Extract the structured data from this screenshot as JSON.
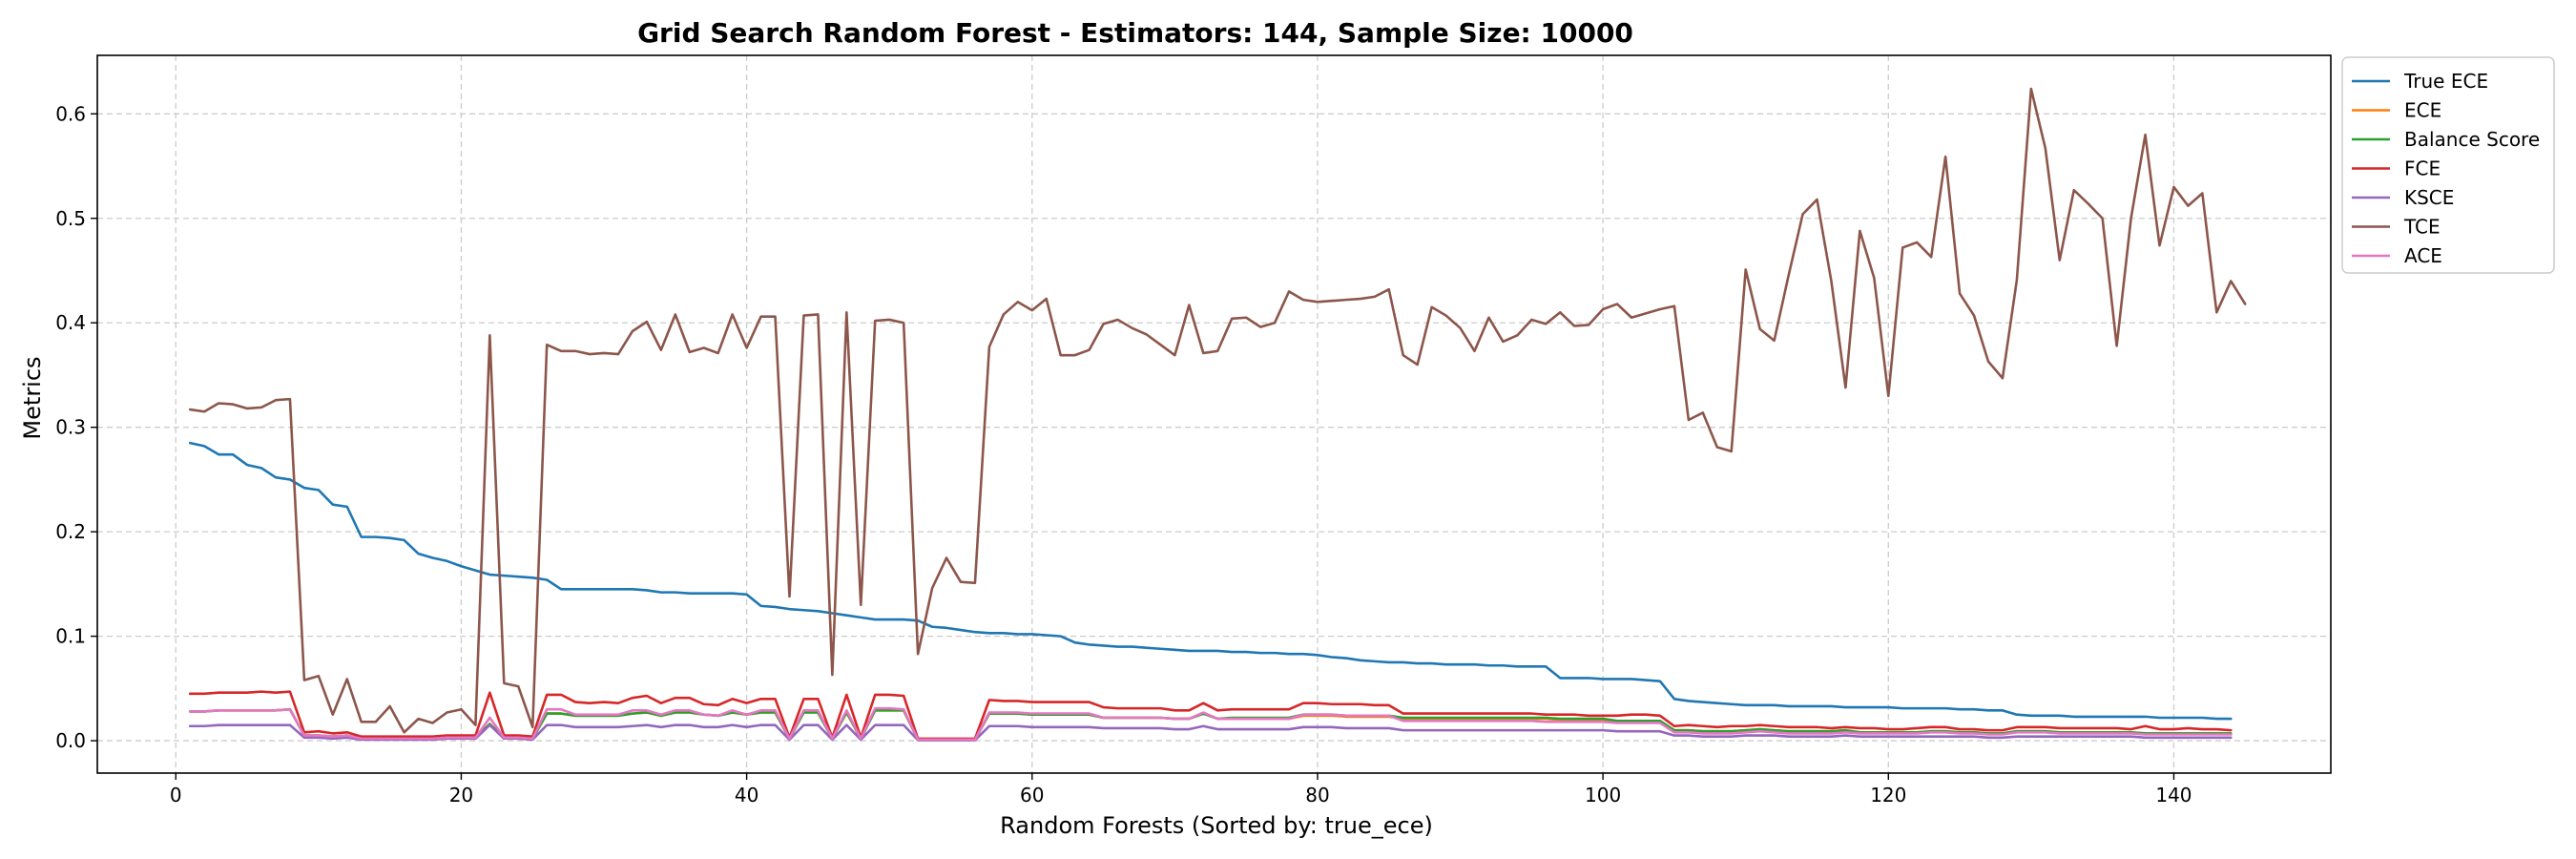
{
  "chart_data": {
    "type": "line",
    "title": "Grid Search Random Forest - Estimators: 144, Sample Size: 10000",
    "xlabel": "Random Forests (Sorted by: true_ece)",
    "ylabel": "Metrics",
    "xlim": [
      -5.5,
      151
    ],
    "ylim": [
      -0.031,
      0.656
    ],
    "x_ticks": [
      0,
      20,
      40,
      60,
      80,
      100,
      120,
      140
    ],
    "y_ticks": [
      0.0,
      0.1,
      0.2,
      0.3,
      0.4,
      0.5,
      0.6
    ],
    "x_tick_labels": [
      "0",
      "20",
      "40",
      "60",
      "80",
      "100",
      "120",
      "140"
    ],
    "y_tick_labels": [
      "0.0",
      "0.1",
      "0.2",
      "0.3",
      "0.4",
      "0.5",
      "0.6"
    ],
    "grid": true,
    "legend_position": "outside-top-right",
    "x_start": 1,
    "series": [
      {
        "name": "True ECE",
        "color": "#1f77b4",
        "values": [
          0.285,
          0.282,
          0.274,
          0.274,
          0.264,
          0.261,
          0.252,
          0.25,
          0.242,
          0.24,
          0.226,
          0.224,
          0.195,
          0.195,
          0.194,
          0.192,
          0.179,
          0.175,
          0.172,
          0.167,
          0.163,
          0.159,
          0.158,
          0.157,
          0.156,
          0.154,
          0.145,
          0.145,
          0.145,
          0.145,
          0.145,
          0.145,
          0.144,
          0.142,
          0.142,
          0.141,
          0.141,
          0.141,
          0.141,
          0.14,
          0.129,
          0.128,
          0.126,
          0.125,
          0.124,
          0.122,
          0.12,
          0.118,
          0.116,
          0.116,
          0.116,
          0.115,
          0.109,
          0.108,
          0.106,
          0.104,
          0.103,
          0.103,
          0.102,
          0.102,
          0.101,
          0.1,
          0.094,
          0.092,
          0.091,
          0.09,
          0.09,
          0.089,
          0.088,
          0.087,
          0.086,
          0.086,
          0.086,
          0.085,
          0.085,
          0.084,
          0.084,
          0.083,
          0.083,
          0.082,
          0.08,
          0.079,
          0.077,
          0.076,
          0.075,
          0.075,
          0.074,
          0.074,
          0.073,
          0.073,
          0.073,
          0.072,
          0.072,
          0.071,
          0.071,
          0.071,
          0.06,
          0.06,
          0.06,
          0.059,
          0.059,
          0.059,
          0.058,
          0.057,
          0.04,
          0.038,
          0.037,
          0.036,
          0.035,
          0.034,
          0.034,
          0.034,
          0.033,
          0.033,
          0.033,
          0.033,
          0.032,
          0.032,
          0.032,
          0.032,
          0.031,
          0.031,
          0.031,
          0.031,
          0.03,
          0.03,
          0.029,
          0.029,
          0.025,
          0.024,
          0.024,
          0.024,
          0.023,
          0.023,
          0.023,
          0.023,
          0.023,
          0.023,
          0.022,
          0.022,
          0.022,
          0.022,
          0.021,
          0.021
        ]
      },
      {
        "name": "ECE",
        "color": "#ff7f0e",
        "values": [
          0.028,
          0.028,
          0.029,
          0.029,
          0.029,
          0.029,
          0.029,
          0.03,
          0.005,
          0.005,
          0.004,
          0.005,
          0.002,
          0.002,
          0.002,
          0.002,
          0.002,
          0.002,
          0.003,
          0.003,
          0.003,
          0.016,
          0.003,
          0.003,
          0.002,
          0.026,
          0.026,
          0.024,
          0.024,
          0.024,
          0.024,
          0.026,
          0.027,
          0.024,
          0.027,
          0.027,
          0.025,
          0.024,
          0.027,
          0.025,
          0.027,
          0.027,
          0.002,
          0.027,
          0.027,
          0.002,
          0.027,
          0.002,
          0.029,
          0.029,
          0.029,
          0.001,
          0.001,
          0.001,
          0.001,
          0.001,
          0.026,
          0.026,
          0.026,
          0.025,
          0.025,
          0.025,
          0.025,
          0.025,
          0.022,
          0.022,
          0.022,
          0.022,
          0.022,
          0.021,
          0.021,
          0.026,
          0.021,
          0.021,
          0.021,
          0.021,
          0.021,
          0.021,
          0.024,
          0.024,
          0.024,
          0.023,
          0.023,
          0.023,
          0.023,
          0.021,
          0.021,
          0.021,
          0.021,
          0.021,
          0.021,
          0.021,
          0.021,
          0.021,
          0.021,
          0.021,
          0.02,
          0.02,
          0.02,
          0.02,
          0.018,
          0.018,
          0.018,
          0.018,
          0.01,
          0.01,
          0.009,
          0.009,
          0.009,
          0.01,
          0.011,
          0.01,
          0.009,
          0.009,
          0.009,
          0.009,
          0.01,
          0.008,
          0.008,
          0.008,
          0.008,
          0.008,
          0.009,
          0.009,
          0.008,
          0.008,
          0.007,
          0.007,
          0.009,
          0.009,
          0.009,
          0.008,
          0.008,
          0.008,
          0.008,
          0.008,
          0.008,
          0.007,
          0.007,
          0.007,
          0.007,
          0.007,
          0.007,
          0.007
        ]
      },
      {
        "name": "Balance Score",
        "color": "#2ca02c",
        "values": [
          0.028,
          0.028,
          0.029,
          0.029,
          0.029,
          0.029,
          0.029,
          0.03,
          0.005,
          0.005,
          0.004,
          0.005,
          0.002,
          0.002,
          0.002,
          0.002,
          0.002,
          0.002,
          0.003,
          0.003,
          0.003,
          0.016,
          0.003,
          0.003,
          0.002,
          0.026,
          0.026,
          0.024,
          0.024,
          0.024,
          0.024,
          0.026,
          0.027,
          0.024,
          0.027,
          0.027,
          0.025,
          0.024,
          0.027,
          0.025,
          0.027,
          0.027,
          0.002,
          0.027,
          0.027,
          0.002,
          0.027,
          0.002,
          0.029,
          0.029,
          0.029,
          0.001,
          0.001,
          0.001,
          0.001,
          0.001,
          0.026,
          0.026,
          0.026,
          0.025,
          0.025,
          0.025,
          0.025,
          0.025,
          0.022,
          0.022,
          0.022,
          0.022,
          0.022,
          0.021,
          0.021,
          0.026,
          0.021,
          0.022,
          0.022,
          0.022,
          0.022,
          0.022,
          0.025,
          0.025,
          0.025,
          0.024,
          0.024,
          0.024,
          0.024,
          0.022,
          0.022,
          0.022,
          0.022,
          0.022,
          0.022,
          0.022,
          0.022,
          0.022,
          0.022,
          0.022,
          0.021,
          0.021,
          0.021,
          0.021,
          0.019,
          0.019,
          0.019,
          0.019,
          0.01,
          0.01,
          0.009,
          0.009,
          0.009,
          0.01,
          0.011,
          0.01,
          0.009,
          0.009,
          0.009,
          0.009,
          0.01,
          0.008,
          0.008,
          0.008,
          0.008,
          0.008,
          0.009,
          0.009,
          0.008,
          0.008,
          0.007,
          0.007,
          0.009,
          0.009,
          0.009,
          0.008,
          0.008,
          0.008,
          0.008,
          0.008,
          0.008,
          0.007,
          0.007,
          0.007,
          0.007,
          0.007,
          0.007,
          0.007
        ]
      },
      {
        "name": "FCE",
        "color": "#d62728",
        "values": [
          0.045,
          0.045,
          0.046,
          0.046,
          0.046,
          0.047,
          0.046,
          0.047,
          0.008,
          0.009,
          0.007,
          0.008,
          0.004,
          0.004,
          0.004,
          0.004,
          0.004,
          0.004,
          0.005,
          0.005,
          0.005,
          0.046,
          0.005,
          0.005,
          0.004,
          0.044,
          0.044,
          0.037,
          0.036,
          0.037,
          0.036,
          0.041,
          0.043,
          0.036,
          0.041,
          0.041,
          0.035,
          0.034,
          0.04,
          0.036,
          0.04,
          0.04,
          0.003,
          0.04,
          0.04,
          0.003,
          0.044,
          0.003,
          0.044,
          0.044,
          0.043,
          0.002,
          0.002,
          0.002,
          0.002,
          0.002,
          0.039,
          0.038,
          0.038,
          0.037,
          0.037,
          0.037,
          0.037,
          0.037,
          0.032,
          0.031,
          0.031,
          0.031,
          0.031,
          0.029,
          0.029,
          0.036,
          0.029,
          0.03,
          0.03,
          0.03,
          0.03,
          0.03,
          0.036,
          0.036,
          0.035,
          0.035,
          0.035,
          0.034,
          0.034,
          0.026,
          0.026,
          0.026,
          0.026,
          0.026,
          0.026,
          0.026,
          0.026,
          0.026,
          0.026,
          0.025,
          0.025,
          0.025,
          0.024,
          0.024,
          0.024,
          0.025,
          0.025,
          0.024,
          0.014,
          0.015,
          0.014,
          0.013,
          0.014,
          0.014,
          0.015,
          0.014,
          0.013,
          0.013,
          0.013,
          0.012,
          0.013,
          0.012,
          0.012,
          0.011,
          0.011,
          0.012,
          0.013,
          0.013,
          0.011,
          0.011,
          0.01,
          0.01,
          0.013,
          0.013,
          0.013,
          0.012,
          0.012,
          0.012,
          0.012,
          0.012,
          0.011,
          0.014,
          0.011,
          0.011,
          0.012,
          0.011,
          0.011,
          0.01
        ]
      },
      {
        "name": "KSCE",
        "color": "#9467bd",
        "values": [
          0.014,
          0.014,
          0.015,
          0.015,
          0.015,
          0.015,
          0.015,
          0.015,
          0.003,
          0.003,
          0.002,
          0.003,
          0.001,
          0.001,
          0.001,
          0.001,
          0.001,
          0.001,
          0.002,
          0.002,
          0.002,
          0.015,
          0.002,
          0.002,
          0.001,
          0.015,
          0.015,
          0.013,
          0.013,
          0.013,
          0.013,
          0.014,
          0.015,
          0.013,
          0.015,
          0.015,
          0.013,
          0.013,
          0.015,
          0.013,
          0.015,
          0.015,
          0.001,
          0.015,
          0.015,
          0.001,
          0.015,
          0.001,
          0.015,
          0.015,
          0.015,
          0.0005,
          0.0005,
          0.0005,
          0.0005,
          0.0005,
          0.014,
          0.014,
          0.014,
          0.013,
          0.013,
          0.013,
          0.013,
          0.013,
          0.012,
          0.012,
          0.012,
          0.012,
          0.012,
          0.011,
          0.011,
          0.014,
          0.011,
          0.011,
          0.011,
          0.011,
          0.011,
          0.011,
          0.013,
          0.013,
          0.013,
          0.012,
          0.012,
          0.012,
          0.012,
          0.01,
          0.01,
          0.01,
          0.01,
          0.01,
          0.01,
          0.01,
          0.01,
          0.01,
          0.01,
          0.01,
          0.01,
          0.01,
          0.01,
          0.01,
          0.009,
          0.009,
          0.009,
          0.009,
          0.005,
          0.005,
          0.004,
          0.004,
          0.004,
          0.005,
          0.005,
          0.005,
          0.004,
          0.004,
          0.004,
          0.004,
          0.005,
          0.004,
          0.004,
          0.004,
          0.004,
          0.004,
          0.004,
          0.004,
          0.004,
          0.004,
          0.003,
          0.003,
          0.004,
          0.004,
          0.004,
          0.004,
          0.004,
          0.004,
          0.004,
          0.004,
          0.004,
          0.003,
          0.003,
          0.003,
          0.003,
          0.003,
          0.003,
          0.003
        ]
      },
      {
        "name": "TCE",
        "color": "#8c564b",
        "values": [
          0.317,
          0.315,
          0.323,
          0.322,
          0.318,
          0.319,
          0.326,
          0.327,
          0.058,
          0.062,
          0.025,
          0.059,
          0.018,
          0.018,
          0.033,
          0.008,
          0.021,
          0.017,
          0.027,
          0.03,
          0.015,
          0.388,
          0.055,
          0.052,
          0.013,
          0.379,
          0.373,
          0.373,
          0.37,
          0.371,
          0.37,
          0.392,
          0.401,
          0.374,
          0.408,
          0.372,
          0.376,
          0.371,
          0.408,
          0.376,
          0.406,
          0.406,
          0.138,
          0.407,
          0.408,
          0.063,
          0.41,
          0.13,
          0.402,
          0.403,
          0.4,
          0.083,
          0.146,
          0.175,
          0.152,
          0.151,
          0.377,
          0.408,
          0.42,
          0.412,
          0.423,
          0.369,
          0.369,
          0.374,
          0.399,
          0.403,
          0.395,
          0.389,
          0.379,
          0.369,
          0.417,
          0.371,
          0.373,
          0.404,
          0.405,
          0.396,
          0.4,
          0.43,
          0.422,
          0.42,
          0.421,
          0.422,
          0.423,
          0.425,
          0.432,
          0.369,
          0.36,
          0.415,
          0.407,
          0.395,
          0.373,
          0.405,
          0.382,
          0.388,
          0.403,
          0.399,
          0.41,
          0.397,
          0.398,
          0.413,
          0.418,
          0.405,
          0.409,
          0.413,
          0.416,
          0.307,
          0.314,
          0.281,
          0.277,
          0.451,
          0.394,
          0.383,
          0.445,
          0.504,
          0.518,
          0.44,
          0.338,
          0.488,
          0.443,
          0.33,
          0.472,
          0.477,
          0.463,
          0.559,
          0.428,
          0.407,
          0.363,
          0.347,
          0.441,
          0.624,
          0.567,
          0.46,
          0.527,
          0.514,
          0.5,
          0.378,
          0.5,
          0.58,
          0.474,
          0.53,
          0.512,
          0.524,
          0.41,
          0.44,
          0.418
        ]
      },
      {
        "name": "ACE",
        "color": "#e377c2",
        "values": [
          0.028,
          0.028,
          0.029,
          0.029,
          0.029,
          0.029,
          0.029,
          0.03,
          0.005,
          0.005,
          0.004,
          0.005,
          0.002,
          0.002,
          0.002,
          0.002,
          0.002,
          0.002,
          0.003,
          0.003,
          0.003,
          0.022,
          0.003,
          0.003,
          0.002,
          0.03,
          0.03,
          0.025,
          0.025,
          0.025,
          0.025,
          0.029,
          0.029,
          0.025,
          0.029,
          0.029,
          0.025,
          0.024,
          0.029,
          0.025,
          0.029,
          0.029,
          0.002,
          0.029,
          0.029,
          0.002,
          0.029,
          0.002,
          0.031,
          0.031,
          0.03,
          0.001,
          0.001,
          0.001,
          0.001,
          0.001,
          0.027,
          0.027,
          0.027,
          0.026,
          0.026,
          0.026,
          0.026,
          0.026,
          0.022,
          0.022,
          0.022,
          0.022,
          0.022,
          0.021,
          0.021,
          0.027,
          0.021,
          0.021,
          0.021,
          0.021,
          0.021,
          0.021,
          0.025,
          0.025,
          0.025,
          0.024,
          0.024,
          0.024,
          0.024,
          0.019,
          0.019,
          0.019,
          0.019,
          0.019,
          0.019,
          0.019,
          0.019,
          0.019,
          0.019,
          0.018,
          0.018,
          0.018,
          0.018,
          0.018,
          0.017,
          0.017,
          0.017,
          0.017,
          0.008,
          0.008,
          0.007,
          0.007,
          0.007,
          0.008,
          0.009,
          0.008,
          0.007,
          0.007,
          0.007,
          0.007,
          0.008,
          0.007,
          0.007,
          0.007,
          0.007,
          0.007,
          0.008,
          0.008,
          0.007,
          0.007,
          0.006,
          0.006,
          0.008,
          0.008,
          0.008,
          0.007,
          0.007,
          0.007,
          0.007,
          0.007,
          0.007,
          0.006,
          0.006,
          0.006,
          0.006,
          0.006,
          0.006,
          0.006
        ]
      }
    ]
  }
}
